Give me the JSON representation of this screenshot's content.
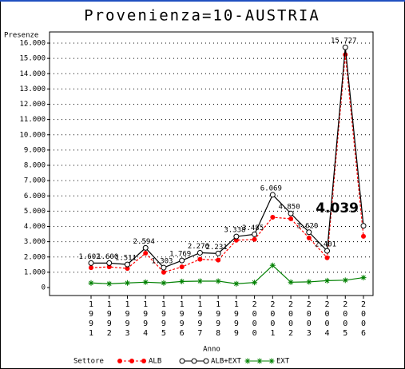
{
  "chart_data": {
    "type": "line",
    "title": "Provenienza=10-AUSTRIA",
    "ylabel": "Presenze",
    "xlabel": "Anno",
    "legend_title": "Settore",
    "categories": [
      "1991",
      "1992",
      "1993",
      "1994",
      "1995",
      "1996",
      "1997",
      "1998",
      "1999",
      "2000",
      "2001",
      "2002",
      "2003",
      "2004",
      "2005",
      "2006"
    ],
    "series": [
      {
        "name": "ALB",
        "color": "#ff0000",
        "marker": "dot",
        "values": [
          1300,
          1350,
          1250,
          2250,
          1000,
          1350,
          1850,
          1800,
          3100,
          3150,
          4600,
          4500,
          3250,
          1950,
          15250,
          3350
        ]
      },
      {
        "name": "ALB+EXT",
        "color": "#000000",
        "marker": "circle",
        "values": [
          1602,
          1600,
          1511,
          2594,
          1303,
          1769,
          2276,
          2231,
          3338,
          3485,
          6069,
          4850,
          3620,
          2401,
          15727,
          4039
        ],
        "value_labels": [
          "1.602",
          "1.600",
          "1.511",
          "2.594",
          "1.303",
          "1.769",
          "2.276",
          "2.231",
          "3.338",
          "3.485",
          "6.069",
          "4.850",
          "3.620",
          "2.401",
          "15.727",
          "4.039"
        ]
      },
      {
        "name": "EXT",
        "color": "#008000",
        "marker": "star",
        "values": [
          300,
          250,
          300,
          350,
          300,
          400,
          420,
          420,
          250,
          330,
          1450,
          350,
          370,
          450,
          480,
          650
        ]
      }
    ],
    "ylim": [
      0,
      16000
    ],
    "yticks": [
      0,
      {
        "value": 1000,
        "label": "1.000"
      },
      {
        "value": 2000,
        "label": "2.000"
      },
      {
        "value": 3000,
        "label": "3.000"
      },
      {
        "value": 4000,
        "label": "4.000"
      },
      {
        "value": 5000,
        "label": "5.000"
      },
      {
        "value": 6000,
        "label": "6.000"
      },
      {
        "value": 7000,
        "label": "7.000"
      },
      {
        "value": 8000,
        "label": "8.000"
      },
      {
        "value": 9000,
        "label": "9.000"
      },
      {
        "value": 10000,
        "label": "10.000"
      },
      {
        "value": 11000,
        "label": "11.000"
      },
      {
        "value": 12000,
        "label": "12.000"
      },
      {
        "value": 13000,
        "label": "13.000"
      },
      {
        "value": 14000,
        "label": "14.000"
      },
      {
        "value": 15000,
        "label": "15.000"
      },
      {
        "value": 16000,
        "label": "16.000"
      }
    ],
    "grid": true
  }
}
